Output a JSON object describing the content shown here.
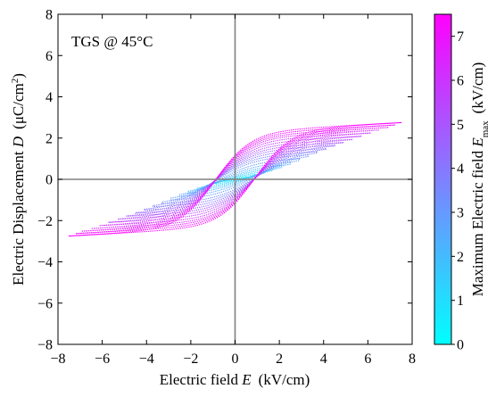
{
  "chart_data": {
    "type": "line",
    "annotation": "TGS @ 45°C",
    "xlabel": {
      "text": "Electric field ",
      "var": "E",
      "unit": "(kV/cm)"
    },
    "ylabel": {
      "text": "Electric Displacement ",
      "var": "D",
      "unit_pre": "(μC/cm",
      "unit_sup": "2",
      "unit_post": ")"
    },
    "xlim": [
      -8,
      8
    ],
    "ylim": [
      -8,
      8
    ],
    "xticks": [
      -8,
      -6,
      -4,
      -2,
      0,
      2,
      4,
      6,
      8
    ],
    "yticks": [
      -8,
      -6,
      -4,
      -2,
      0,
      2,
      4,
      6,
      8
    ],
    "zero_lines": true,
    "colorbar": {
      "label_pre": "Maximum Electric field ",
      "label_var": "E",
      "label_sub": "max",
      "label_unit": "(kV/cm)",
      "range": [
        0,
        7.5
      ],
      "ticks": [
        0,
        1,
        2,
        3,
        4,
        5,
        6,
        7
      ],
      "colormap": [
        "#00ffff",
        "#ff00ff"
      ]
    },
    "series_param": {
      "emax": [
        0.5,
        0.9,
        1.3,
        1.7,
        2.1,
        2.5,
        2.9,
        3.3,
        3.7,
        4.1,
        4.5,
        4.9,
        5.3,
        5.7,
        6.1,
        6.5,
        6.9,
        7.2,
        7.5
      ],
      "dsat": [
        0.2,
        0.3,
        0.4,
        0.5,
        0.6,
        0.72,
        0.85,
        1.0,
        1.12,
        1.25,
        1.38,
        1.5,
        1.62,
        1.75,
        1.88,
        2.0,
        2.1,
        2.2,
        2.3
      ],
      "coercive_field": 0.9,
      "slope": 0.06
    }
  }
}
